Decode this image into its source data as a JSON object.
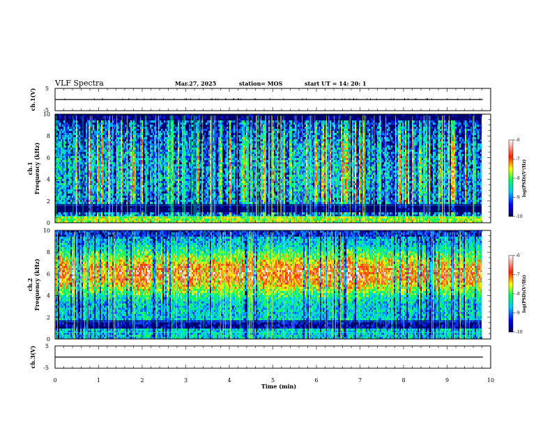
{
  "header": {
    "title": "VLF Spectra",
    "date": "Mar.27, 2025",
    "station": "station= MOS",
    "start": "start  UT =   14: 20: 1"
  },
  "chart_data": [
    {
      "type": "line",
      "name": "ch1-voltage",
      "ylabel": "ch.1(V)",
      "ylim": [
        -5,
        5
      ],
      "yticks": [
        "5",
        "-5"
      ],
      "x": [
        0,
        10
      ],
      "values": [
        0,
        0
      ]
    },
    {
      "type": "heatmap",
      "name": "ch1-spectrogram",
      "ylabel": "ch.1\nFrequency (kHz)",
      "ylabel_lines": [
        "ch.1",
        "Frequency (kHz)"
      ],
      "ylim": [
        0,
        10
      ],
      "yticks": [
        "0",
        "2",
        "4",
        "6",
        "8",
        "10"
      ],
      "xlim": [
        0,
        10
      ],
      "colorbar": {
        "label": "log(PSD)(V²/Hz)",
        "range": [
          -10,
          -6
        ],
        "ticks": [
          "-6",
          "-7",
          "-8",
          "-9",
          "-10"
        ]
      }
    },
    {
      "type": "heatmap",
      "name": "ch2-spectrogram",
      "ylabel": "ch.2\nFrequency (kHz)",
      "ylabel_lines": [
        "ch.2",
        "Frequency (kHz)"
      ],
      "ylim": [
        0,
        10
      ],
      "yticks": [
        "0",
        "2",
        "4",
        "6",
        "8",
        "10"
      ],
      "xlim": [
        0,
        10
      ],
      "colorbar": {
        "label": "log(PSD)(V²/Hz)",
        "range": [
          -10,
          -6
        ],
        "ticks": [
          "-6",
          "-7",
          "-8",
          "-9",
          "-10"
        ]
      }
    },
    {
      "type": "line",
      "name": "ch3-voltage",
      "ylabel": "ch.3(V)",
      "ylim": [
        -5,
        5
      ],
      "yticks": [
        "5",
        "-5"
      ],
      "x": [
        0,
        10
      ],
      "values": [
        0,
        0
      ]
    }
  ],
  "xaxis": {
    "label": "Time  (min)",
    "ticks": [
      "0",
      "1",
      "2",
      "3",
      "4",
      "5",
      "6",
      "7",
      "8",
      "9",
      "10"
    ],
    "range": [
      0,
      10
    ]
  },
  "colors": {
    "colormap": [
      "#000060",
      "#0000ff",
      "#00c8ff",
      "#00ff60",
      "#ffff00",
      "#ff3000",
      "#ffffff"
    ]
  }
}
